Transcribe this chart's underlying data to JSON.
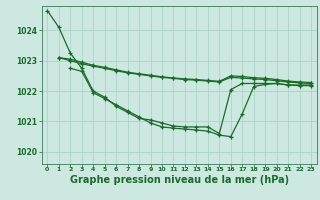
{
  "background_color": "#cce8e0",
  "grid_color": "#aad4c8",
  "line_color": "#1a6b2a",
  "xlabel": "Graphe pression niveau de la mer (hPa)",
  "xlabel_fontsize": 7,
  "ylim": [
    1019.6,
    1024.8
  ],
  "xlim": [
    -0.5,
    23.5
  ],
  "yticks": [
    1020,
    1021,
    1022,
    1023,
    1024
  ],
  "xticks": [
    0,
    1,
    2,
    3,
    4,
    5,
    6,
    7,
    8,
    9,
    10,
    11,
    12,
    13,
    14,
    15,
    16,
    17,
    18,
    19,
    20,
    21,
    22,
    23
  ],
  "series1_x": [
    0,
    1,
    2,
    3,
    4,
    5,
    6,
    7,
    8,
    9,
    10,
    11,
    12,
    13,
    14,
    15,
    16,
    17,
    18,
    19,
    20,
    21,
    22,
    23
  ],
  "series1": [
    1024.65,
    1024.1,
    1023.25,
    1022.75,
    1022.0,
    1021.8,
    1021.5,
    1021.3,
    1021.1,
    1021.05,
    1020.95,
    1020.85,
    1020.82,
    1020.82,
    1020.82,
    1020.6,
    1022.05,
    1022.25,
    1022.25,
    1022.25,
    1022.25,
    1022.2,
    1022.2,
    1022.2
  ],
  "series2_x": [
    1,
    2,
    3,
    4,
    5,
    6,
    7,
    8,
    9,
    10,
    11,
    12,
    13,
    14,
    15,
    16,
    17,
    18,
    19,
    20,
    21,
    22,
    23
  ],
  "series2": [
    1023.1,
    1023.05,
    1022.95,
    1022.85,
    1022.78,
    1022.7,
    1022.62,
    1022.57,
    1022.52,
    1022.47,
    1022.43,
    1022.4,
    1022.38,
    1022.35,
    1022.32,
    1022.5,
    1022.48,
    1022.44,
    1022.42,
    1022.38,
    1022.33,
    1022.3,
    1022.28
  ],
  "series3_x": [
    1,
    2,
    3,
    4,
    5,
    6,
    7,
    8,
    9,
    10,
    11,
    12,
    13,
    14,
    15,
    16,
    17,
    18,
    19,
    20,
    21,
    22,
    23
  ],
  "series3": [
    1023.1,
    1023.0,
    1022.9,
    1022.82,
    1022.75,
    1022.67,
    1022.6,
    1022.55,
    1022.5,
    1022.45,
    1022.42,
    1022.38,
    1022.36,
    1022.33,
    1022.3,
    1022.45,
    1022.43,
    1022.4,
    1022.38,
    1022.34,
    1022.3,
    1022.27,
    1022.25
  ],
  "series4_x": [
    2,
    3,
    4,
    5,
    6,
    7,
    8,
    9,
    10,
    11,
    12,
    13,
    14,
    15,
    16,
    17,
    18,
    19,
    20,
    21,
    22,
    23
  ],
  "series4": [
    1022.75,
    1022.65,
    1021.95,
    1021.75,
    1021.55,
    1021.35,
    1021.15,
    1020.95,
    1020.82,
    1020.78,
    1020.75,
    1020.72,
    1020.68,
    1020.55,
    1020.5,
    1021.25,
    1022.15,
    1022.22,
    1022.25,
    1022.2,
    1022.18,
    1022.18
  ]
}
